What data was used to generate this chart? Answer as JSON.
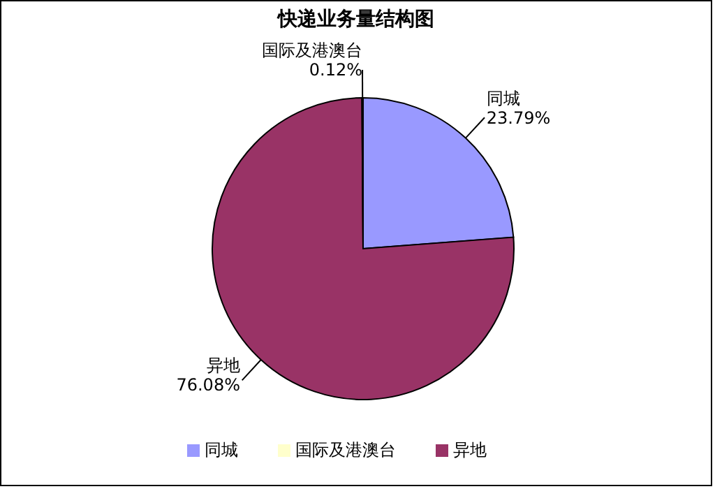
{
  "chart_data": {
    "type": "pie",
    "title": "快递业务量结构图",
    "categories": [
      "同城",
      "异地",
      "国际及港澳台"
    ],
    "values": [
      23.79,
      76.08,
      0.12
    ],
    "value_labels": [
      "23.79%",
      "76.08%",
      "0.12%"
    ],
    "colors": [
      "#9999ff",
      "#993366",
      "#ffffcc"
    ],
    "legend": "bottom"
  }
}
